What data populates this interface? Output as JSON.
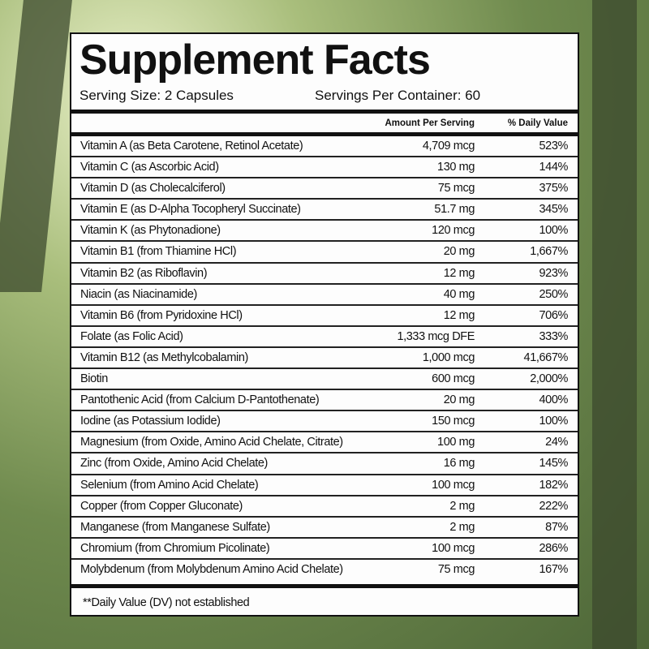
{
  "title": "Supplement Facts",
  "serving_size": "Serving Size: 2 Capsules",
  "servings_per_container": "Servings Per Container: 60",
  "columns": {
    "amount": "Amount Per Serving",
    "dv": "% Daily Value"
  },
  "rows": [
    {
      "name": "Vitamin A (as Beta Carotene,  Retinol Acetate)",
      "amount": "4,709 mcg",
      "dv": "523%"
    },
    {
      "name": "Vitamin C (as Ascorbic Acid)",
      "amount": "130 mg",
      "dv": "144%"
    },
    {
      "name": "Vitamin D (as Cholecalciferol)",
      "amount": "75 mcg",
      "dv": "375%"
    },
    {
      "name": "Vitamin E (as D-Alpha Tocopheryl Succinate)",
      "amount": "51.7 mg",
      "dv": "345%"
    },
    {
      "name": "Vitamin K (as Phytonadione)",
      "amount": "120 mcg",
      "dv": "100%"
    },
    {
      "name": "Vitamin B1 (from Thiamine HCl)",
      "amount": "20 mg",
      "dv": "1,667%"
    },
    {
      "name": "Vitamin B2 (as Riboflavin)",
      "amount": "12 mg",
      "dv": "923%"
    },
    {
      "name": "Niacin (as Niacinamide)",
      "amount": "40 mg",
      "dv": "250%"
    },
    {
      "name": "Vitamin B6 (from Pyridoxine HCl)",
      "amount": "12 mg",
      "dv": "706%"
    },
    {
      "name": "Folate (as Folic Acid)",
      "amount": "1,333 mcg DFE",
      "dv": "333%"
    },
    {
      "name": "Vitamin B12 (as Methylcobalamin)",
      "amount": "1,000 mcg",
      "dv": "41,667%"
    },
    {
      "name": "Biotin",
      "amount": "600 mcg",
      "dv": "2,000%"
    },
    {
      "name": "Pantothenic Acid (from Calcium D-Pantothenate)",
      "amount": "20 mg",
      "dv": "400%"
    },
    {
      "name": "Iodine (as Potassium Iodide)",
      "amount": "150 mcg",
      "dv": "100%"
    },
    {
      "name": "Magnesium (from Oxide, Amino Acid Chelate, Citrate)",
      "amount": "100 mg",
      "dv": "24%"
    },
    {
      "name": "Zinc (from Oxide, Amino Acid Chelate)",
      "amount": "16 mg",
      "dv": "145%"
    },
    {
      "name": "Selenium (from Amino Acid Chelate)",
      "amount": "100 mcg",
      "dv": "182%"
    },
    {
      "name": "Copper (from Copper Gluconate)",
      "amount": "2 mg",
      "dv": "222%"
    },
    {
      "name": "Manganese (from Manganese Sulfate)",
      "amount": "2 mg",
      "dv": "87%"
    },
    {
      "name": "Chromium (from Chromium Picolinate)",
      "amount": "100 mcg",
      "dv": "286%"
    },
    {
      "name": "Molybdenum (from Molybdenum Amino Acid Chelate)",
      "amount": "75 mcg",
      "dv": "167%"
    }
  ],
  "footnote": "**Daily Value (DV) not established"
}
